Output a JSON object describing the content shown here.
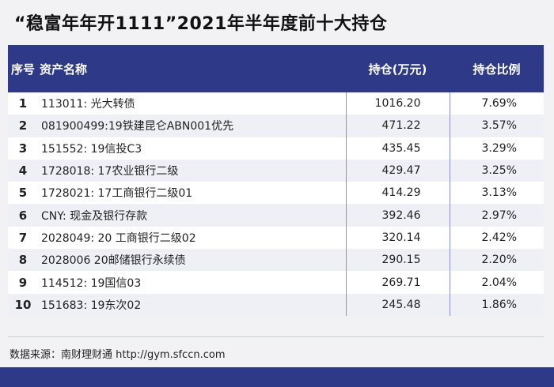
{
  "title": "“稳富年年开1111”2021年半年度前十大持仓",
  "table": {
    "headers": {
      "no": "序号",
      "name": "资产名称",
      "holding": "持仓(万元)",
      "ratio": "持仓比例"
    },
    "rows": [
      {
        "no": "1",
        "name": "113011: 光大转债",
        "holding": "1016.20",
        "ratio": "7.69%"
      },
      {
        "no": "2",
        "name": "081900499:19铁建昆仑ABN001优先",
        "holding": "471.22",
        "ratio": "3.57%"
      },
      {
        "no": "3",
        "name": "151552: 19信投C3",
        "holding": "435.45",
        "ratio": "3.29%"
      },
      {
        "no": "4",
        "name": "1728018: 17农业银行二级",
        "holding": "429.47",
        "ratio": "3.25%"
      },
      {
        "no": "5",
        "name": "1728021: 17工商银行二级01",
        "holding": "414.29",
        "ratio": "3.13%"
      },
      {
        "no": "6",
        "name": "CNY: 现金及银行存款",
        "holding": "392.46",
        "ratio": "2.97%"
      },
      {
        "no": "7",
        "name": "2028049: 20 工商银行二级02",
        "holding": "320.14",
        "ratio": "2.42%"
      },
      {
        "no": "8",
        "name": "2028006 20邮储银行永续债",
        "holding": "290.15",
        "ratio": "2.20%"
      },
      {
        "no": "9",
        "name": "114512: 19国信03",
        "holding": "269.71",
        "ratio": "2.04%"
      },
      {
        "no": "10",
        "name": "151683: 19东次02",
        "holding": "245.48",
        "ratio": "1.86%"
      }
    ]
  },
  "source": "数据来源：南财理财通 http://gym.sfccn.com",
  "colors": {
    "header_bg": "#2e3a87",
    "row_alt": "#eef0f6"
  }
}
